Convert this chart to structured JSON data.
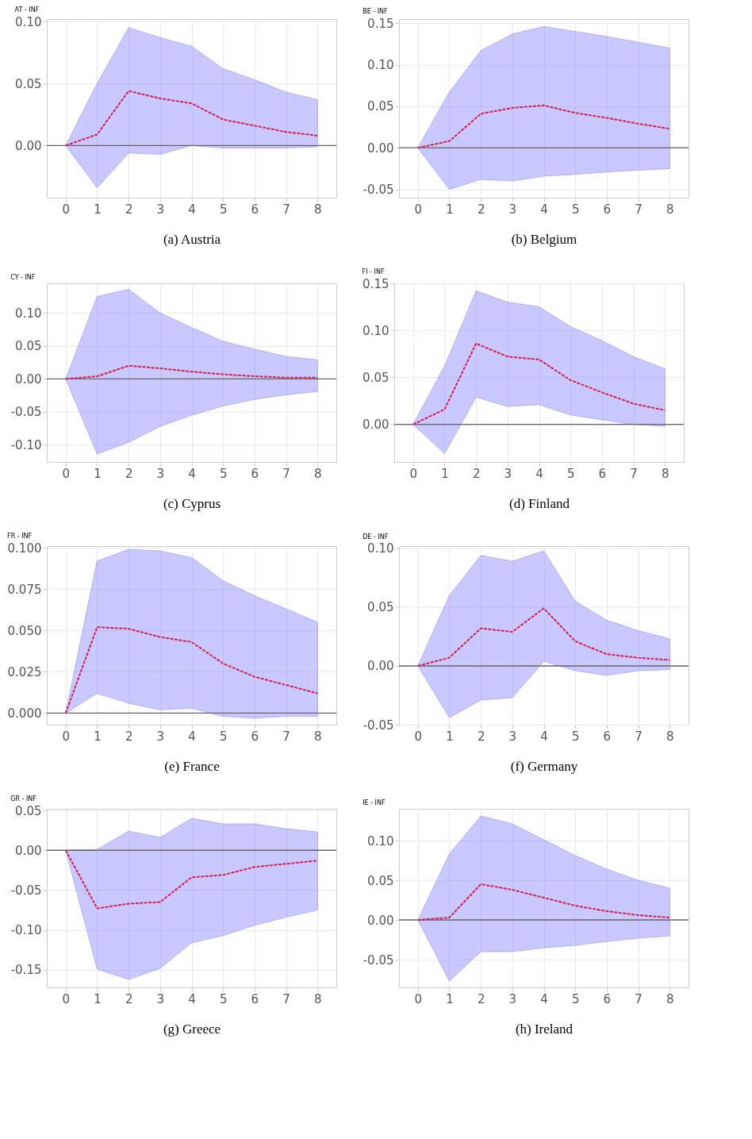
{
  "chart_data": [
    {
      "type": "line",
      "title": "AT - INF",
      "xlabel": "(a) Austria",
      "x": [
        0,
        1,
        2,
        3,
        4,
        5,
        6,
        7,
        8
      ],
      "xlim": [
        -0.6,
        8.6
      ],
      "xticks": [
        0,
        1,
        2,
        3,
        4,
        5,
        6,
        7,
        8
      ],
      "ylim": [
        -0.042,
        0.102
      ],
      "yticks": [
        {
          "value": 0,
          "label": "0.00"
        },
        {
          "value": 0.05,
          "label": "0.05"
        },
        {
          "value": 0.1,
          "label": "0.10"
        }
      ],
      "grid": true,
      "line_style": "dashed",
      "marker": "none",
      "ref_lines": [
        {
          "axis": "y",
          "value": 0,
          "color": "#666666"
        }
      ],
      "series": [
        {
          "color": "#d6204f",
          "values": [
            0,
            0.009,
            0.044,
            0.038,
            0.034,
            0.021,
            0.016,
            0.011,
            0.008
          ],
          "lower": [
            0,
            -0.034,
            -0.006,
            -0.007,
            0,
            -0.002,
            -0.002,
            -0.002,
            -0.001
          ],
          "upper": [
            0,
            0.05,
            0.095,
            0.087,
            0.08,
            0.062,
            0.053,
            0.043,
            0.037
          ]
        }
      ]
    },
    {
      "type": "line",
      "title": "BE - INF",
      "xlabel": "(b) Belgium",
      "x": [
        0,
        1,
        2,
        3,
        4,
        5,
        6,
        7,
        8
      ],
      "xlim": [
        -0.6,
        8.6
      ],
      "xticks": [
        0,
        1,
        2,
        3,
        4,
        5,
        6,
        7,
        8
      ],
      "ylim": [
        -0.06,
        0.155
      ],
      "yticks": [
        {
          "value": -0.05,
          "label": "-0.05"
        },
        {
          "value": 0,
          "label": "0.00"
        },
        {
          "value": 0.05,
          "label": "0.05"
        },
        {
          "value": 0.1,
          "label": "0.10"
        },
        {
          "value": 0.15,
          "label": "0.15"
        }
      ],
      "grid": true,
      "line_style": "dashed",
      "marker": "none",
      "ref_lines": [
        {
          "axis": "y",
          "value": 0,
          "color": "#666666"
        }
      ],
      "series": [
        {
          "color": "#d6204f",
          "values": [
            0,
            0.008,
            0.041,
            0.048,
            0.051,
            0.042,
            0.036,
            0.029,
            0.023
          ],
          "lower": [
            0,
            -0.05,
            -0.038,
            -0.04,
            -0.034,
            -0.032,
            -0.029,
            -0.027,
            -0.025
          ],
          "upper": [
            0,
            0.067,
            0.117,
            0.137,
            0.146,
            0.14,
            0.134,
            0.127,
            0.12
          ]
        }
      ]
    },
    {
      "type": "line",
      "title": "CY - INF",
      "xlabel": "(c) Cyprus",
      "x": [
        0,
        1,
        2,
        3,
        4,
        5,
        6,
        7,
        8
      ],
      "xlim": [
        -0.6,
        8.6
      ],
      "xticks": [
        0,
        1,
        2,
        3,
        4,
        5,
        6,
        7,
        8
      ],
      "ylim": [
        -0.126,
        0.145
      ],
      "yticks": [
        {
          "value": -0.1,
          "label": "-0.10"
        },
        {
          "value": -0.05,
          "label": "-0.05"
        },
        {
          "value": 0,
          "label": "0.00"
        },
        {
          "value": 0.05,
          "label": "0.05"
        },
        {
          "value": 0.1,
          "label": "0.10"
        }
      ],
      "grid": true,
      "line_style": "dashed",
      "marker": "none",
      "ref_lines": [
        {
          "axis": "y",
          "value": 0,
          "color": "#666666"
        }
      ],
      "series": [
        {
          "color": "#d6204f",
          "values": [
            0,
            0.004,
            0.02,
            0.016,
            0.011,
            0.007,
            0.004,
            0.002,
            0.002
          ],
          "lower": [
            0,
            -0.114,
            -0.096,
            -0.072,
            -0.055,
            -0.041,
            -0.031,
            -0.024,
            -0.019
          ],
          "upper": [
            0,
            0.125,
            0.136,
            0.1,
            0.078,
            0.057,
            0.045,
            0.034,
            0.029
          ]
        }
      ]
    },
    {
      "type": "line",
      "title": "FI - INF",
      "xlabel": "(d) Finland",
      "x": [
        0,
        1,
        2,
        3,
        4,
        5,
        6,
        7,
        8
      ],
      "xlim": [
        -0.6,
        8.6
      ],
      "xticks": [
        0,
        1,
        2,
        3,
        4,
        5,
        6,
        7,
        8
      ],
      "ylim": [
        -0.04,
        0.15
      ],
      "yticks": [
        {
          "value": 0,
          "label": "0.00"
        },
        {
          "value": 0.05,
          "label": "0.05"
        },
        {
          "value": 0.1,
          "label": "0.10"
        },
        {
          "value": 0.15,
          "label": "0.15"
        }
      ],
      "grid": true,
      "line_style": "dashed",
      "marker": "none",
      "ref_lines": [
        {
          "axis": "y",
          "value": 0,
          "color": "#666666"
        }
      ],
      "series": [
        {
          "color": "#d6204f",
          "values": [
            0,
            0.016,
            0.086,
            0.072,
            0.069,
            0.047,
            0.034,
            0.022,
            0.015
          ],
          "lower": [
            0,
            -0.031,
            0.029,
            0.019,
            0.021,
            0.01,
            0.005,
            0,
            -0.002
          ],
          "upper": [
            0,
            0.062,
            0.142,
            0.13,
            0.125,
            0.104,
            0.089,
            0.072,
            0.059
          ]
        }
      ]
    },
    {
      "type": "line",
      "title": "FR - INF",
      "xlabel": "(e) France",
      "x": [
        0,
        1,
        2,
        3,
        4,
        5,
        6,
        7,
        8
      ],
      "xlim": [
        -0.6,
        8.6
      ],
      "xticks": [
        0,
        1,
        2,
        3,
        4,
        5,
        6,
        7,
        8
      ],
      "ylim": [
        -0.007,
        0.101
      ],
      "yticks": [
        {
          "value": 0,
          "label": "0.000"
        },
        {
          "value": 0.025,
          "label": "0.025"
        },
        {
          "value": 0.05,
          "label": "0.050"
        },
        {
          "value": 0.075,
          "label": "0.075"
        },
        {
          "value": 0.1,
          "label": "0.100"
        }
      ],
      "grid": true,
      "line_style": "dashed",
      "marker": "none",
      "ref_lines": [
        {
          "axis": "y",
          "value": 0,
          "color": "#666666"
        }
      ],
      "series": [
        {
          "color": "#d6204f",
          "values": [
            0,
            0.052,
            0.051,
            0.046,
            0.043,
            0.03,
            0.022,
            0.017,
            0.012
          ],
          "lower": [
            0,
            0.012,
            0.006,
            0.002,
            0.003,
            -0.002,
            -0.003,
            -0.002,
            -0.002
          ],
          "upper": [
            0,
            0.092,
            0.099,
            0.098,
            0.094,
            0.08,
            0.071,
            0.063,
            0.055
          ]
        }
      ]
    },
    {
      "type": "line",
      "title": "DE - INF",
      "xlabel": "(f) Germany",
      "x": [
        0,
        1,
        2,
        3,
        4,
        5,
        6,
        7,
        8
      ],
      "xlim": [
        -0.6,
        8.6
      ],
      "xticks": [
        0,
        1,
        2,
        3,
        4,
        5,
        6,
        7,
        8
      ],
      "ylim": [
        -0.05,
        0.102
      ],
      "yticks": [
        {
          "value": -0.05,
          "label": "-0.05"
        },
        {
          "value": 0,
          "label": "0.00"
        },
        {
          "value": 0.05,
          "label": "0.05"
        },
        {
          "value": 0.1,
          "label": "0.10"
        }
      ],
      "grid": true,
      "line_style": "dashed",
      "marker": "none",
      "ref_lines": [
        {
          "axis": "y",
          "value": 0,
          "color": "#666666"
        }
      ],
      "series": [
        {
          "color": "#d6204f",
          "values": [
            0,
            0.007,
            0.032,
            0.029,
            0.049,
            0.021,
            0.01,
            0.007,
            0.005
          ],
          "lower": [
            0,
            -0.044,
            -0.029,
            -0.027,
            0.004,
            -0.004,
            -0.008,
            -0.004,
            -0.003
          ],
          "upper": [
            0,
            0.06,
            0.094,
            0.089,
            0.098,
            0.055,
            0.039,
            0.03,
            0.023
          ]
        }
      ]
    },
    {
      "type": "line",
      "title": "GR - INF",
      "xlabel": "(g) Greece",
      "x": [
        0,
        1,
        2,
        3,
        4,
        5,
        6,
        7,
        8
      ],
      "xlim": [
        -0.6,
        8.6
      ],
      "xticks": [
        0,
        1,
        2,
        3,
        4,
        5,
        6,
        7,
        8
      ],
      "ylim": [
        -0.172,
        0.052
      ],
      "yticks": [
        {
          "value": -0.15,
          "label": "-0.15"
        },
        {
          "value": -0.1,
          "label": "-0.10"
        },
        {
          "value": -0.05,
          "label": "-0.05"
        },
        {
          "value": 0,
          "label": "0.00"
        },
        {
          "value": 0.05,
          "label": "0.05"
        }
      ],
      "grid": true,
      "line_style": "dashed",
      "marker": "none",
      "ref_lines": [
        {
          "axis": "y",
          "value": 0,
          "color": "#666666"
        }
      ],
      "series": [
        {
          "color": "#d6204f",
          "values": [
            0,
            -0.073,
            -0.067,
            -0.065,
            -0.034,
            -0.031,
            -0.021,
            -0.017,
            -0.013
          ],
          "lower": [
            0,
            -0.149,
            -0.162,
            -0.148,
            -0.116,
            -0.107,
            -0.094,
            -0.084,
            -0.075
          ],
          "upper": [
            0,
            0.001,
            0.024,
            0.016,
            0.04,
            0.033,
            0.033,
            0.027,
            0.023
          ]
        }
      ]
    },
    {
      "type": "line",
      "title": "IE - INF",
      "xlabel": "(h) Ireland",
      "x": [
        0,
        1,
        2,
        3,
        4,
        5,
        6,
        7,
        8
      ],
      "xlim": [
        -0.6,
        8.6
      ],
      "xticks": [
        0,
        1,
        2,
        3,
        4,
        5,
        6,
        7,
        8
      ],
      "ylim": [
        -0.085,
        0.14
      ],
      "yticks": [
        {
          "value": -0.05,
          "label": "-0.05"
        },
        {
          "value": 0,
          "label": "0.00"
        },
        {
          "value": 0.05,
          "label": "0.05"
        },
        {
          "value": 0.1,
          "label": "0.10"
        }
      ],
      "grid": true,
      "line_style": "dashed",
      "marker": "none",
      "ref_lines": [
        {
          "axis": "y",
          "value": 0,
          "color": "#666666"
        }
      ],
      "series": [
        {
          "color": "#d6204f",
          "values": [
            0,
            0.003,
            0.045,
            0.038,
            0.028,
            0.018,
            0.011,
            0.006,
            0.003
          ],
          "lower": [
            0,
            -0.077,
            -0.04,
            -0.04,
            -0.035,
            -0.032,
            -0.027,
            -0.023,
            -0.02
          ],
          "upper": [
            0,
            0.083,
            0.131,
            0.121,
            0.101,
            0.081,
            0.064,
            0.05,
            0.04
          ]
        }
      ]
    }
  ]
}
